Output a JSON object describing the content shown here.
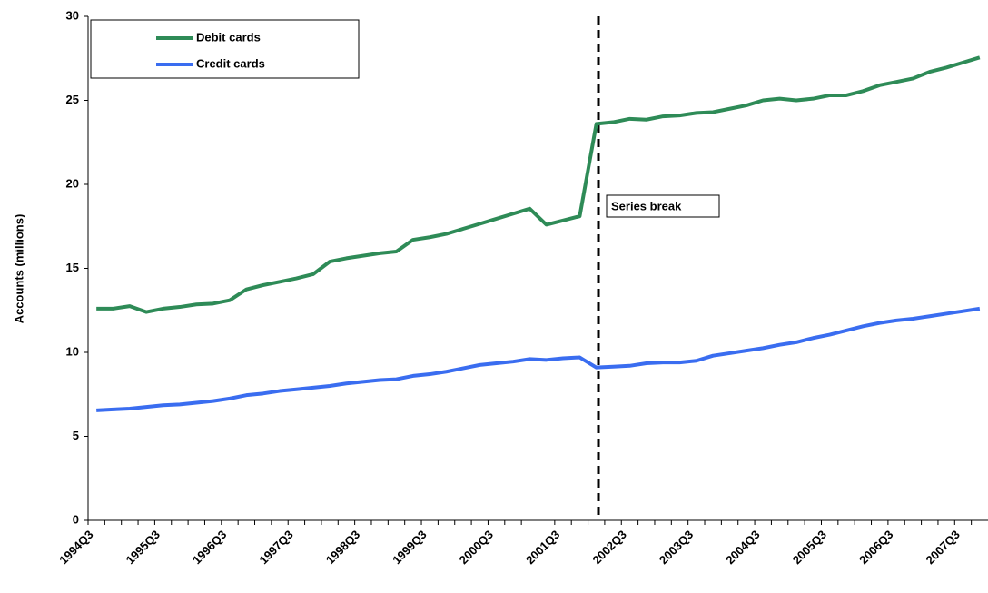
{
  "chart_data": {
    "type": "line",
    "y_label": "Accounts (millions)",
    "annotation": "Series break",
    "categories": [
      "1994Q3",
      null,
      null,
      null,
      "1995Q3",
      null,
      null,
      null,
      "1996Q3",
      null,
      null,
      null,
      "1997Q3",
      null,
      null,
      null,
      "1998Q3",
      null,
      null,
      null,
      "1999Q3",
      null,
      null,
      null,
      "2000Q3",
      null,
      null,
      null,
      "2001Q3",
      null,
      null,
      null,
      "2002Q3",
      null,
      null,
      null,
      "2003Q3",
      null,
      null,
      null,
      "2004Q3",
      null,
      null,
      null,
      "2005Q3",
      null,
      null,
      null,
      "2006Q3",
      null,
      null,
      null,
      "2007Q3",
      null
    ],
    "series": [
      {
        "name": "Debit cards",
        "color": "#2e8b57",
        "values": [
          12.6,
          12.6,
          12.75,
          12.4,
          12.6,
          12.7,
          12.85,
          12.9,
          13.1,
          13.75,
          14.0,
          14.2,
          14.4,
          14.65,
          15.4,
          15.6,
          15.75,
          15.9,
          16.0,
          16.7,
          16.85,
          17.05,
          17.35,
          17.65,
          17.95,
          18.25,
          18.55,
          17.6,
          17.85,
          18.1,
          23.6,
          23.7,
          23.9,
          23.85,
          24.05,
          24.1,
          24.25,
          24.3,
          24.5,
          24.7,
          25.0,
          25.1,
          25.0,
          25.1,
          25.3,
          25.3,
          25.55,
          25.9,
          26.1,
          26.3,
          26.7,
          26.95,
          27.25,
          27.55
        ]
      },
      {
        "name": "Credit cards",
        "color": "#3a6df0",
        "values": [
          6.55,
          6.6,
          6.65,
          6.75,
          6.85,
          6.9,
          7.0,
          7.1,
          7.25,
          7.45,
          7.55,
          7.7,
          7.8,
          7.9,
          8.0,
          8.15,
          8.25,
          8.35,
          8.4,
          8.6,
          8.7,
          8.85,
          9.05,
          9.25,
          9.35,
          9.45,
          9.6,
          9.55,
          9.65,
          9.7,
          9.1,
          9.15,
          9.2,
          9.35,
          9.4,
          9.4,
          9.5,
          9.8,
          9.95,
          10.1,
          10.25,
          10.45,
          10.6,
          10.85,
          11.05,
          11.3,
          11.55,
          11.75,
          11.9,
          12.0,
          12.15,
          12.3,
          12.45,
          12.6
        ]
      }
    ],
    "ylim": [
      0,
      30
    ],
    "yticks": [
      0,
      5,
      10,
      15,
      20,
      25,
      30
    ],
    "grid": false
  }
}
